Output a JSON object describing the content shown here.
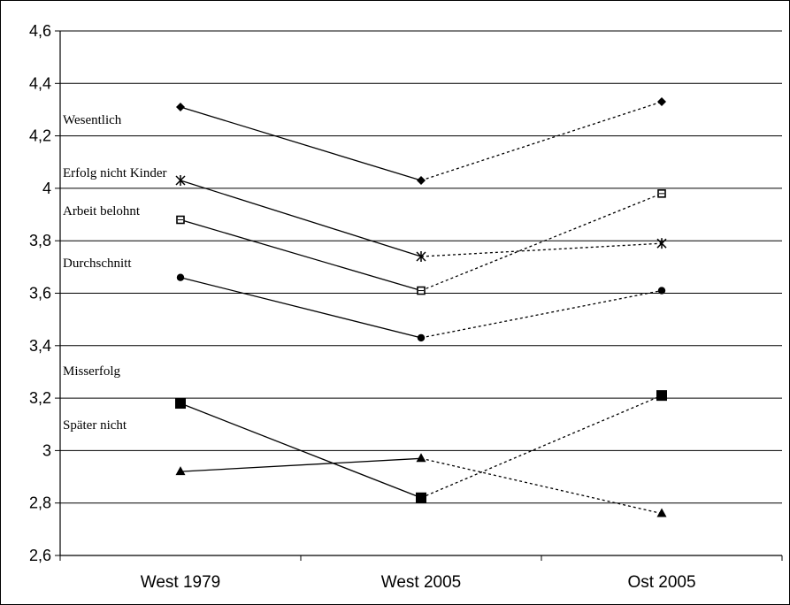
{
  "chart_data": {
    "type": "line",
    "categories": [
      "West 1979",
      "West 2005",
      "Ost 2005"
    ],
    "ylim": [
      2.6,
      4.6
    ],
    "yticks": [
      2.6,
      2.8,
      3,
      3.2,
      3.4,
      3.6,
      3.8,
      4,
      4.2,
      4.4,
      4.6
    ],
    "ytick_labels": [
      "2,6",
      "2,8",
      "3",
      "3,2",
      "3,4",
      "3,6",
      "3,8",
      "4",
      "4,2",
      "4,4",
      "4,6"
    ],
    "grid": "horizontal",
    "line_styles": {
      "West 1979-West 2005": "solid",
      "West 2005-Ost 2005": "dotted"
    },
    "series": [
      {
        "name": "Wesentlich",
        "marker": "diamond",
        "values": [
          4.31,
          4.03,
          4.33
        ]
      },
      {
        "name": "Erfolg nicht Kinder",
        "marker": "star",
        "values": [
          4.03,
          3.74,
          3.79
        ]
      },
      {
        "name": "Arbeit belohnt",
        "marker": "hollow-square",
        "values": [
          3.88,
          3.61,
          3.98
        ]
      },
      {
        "name": "Durchschnitt",
        "marker": "circle",
        "values": [
          3.66,
          3.43,
          3.61
        ]
      },
      {
        "name": "Misserfolg",
        "marker": "square",
        "values": [
          3.18,
          2.82,
          3.21
        ]
      },
      {
        "name": "Später nicht",
        "marker": "triangle",
        "values": [
          2.92,
          2.97,
          2.76
        ]
      }
    ],
    "title": "",
    "xlabel": "",
    "ylabel": ""
  },
  "colors": {
    "line": "#000000",
    "grid": "#000000",
    "background": "#ffffff"
  }
}
